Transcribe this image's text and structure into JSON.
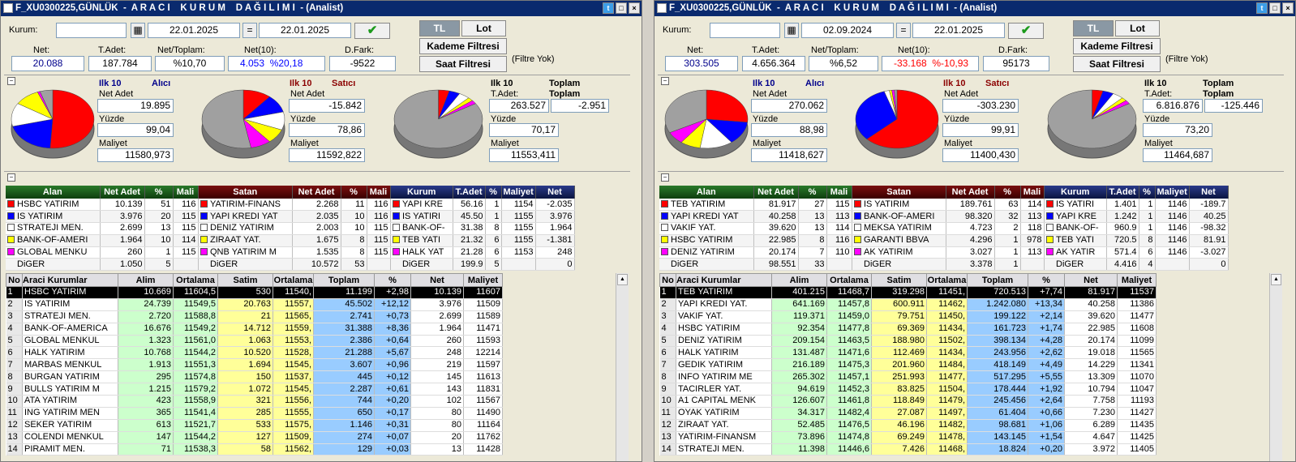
{
  "left": {
    "title": "F_XU0300225,GÜNLÜK  -  A R A C I    K U R U M    D A Ğ I L I M I  - (Analist)",
    "kurum_label": "Kurum:",
    "kurum_value": "",
    "date_from": "22.01.2025",
    "eq": "=",
    "date_to": "22.01.2025",
    "tl": "TL",
    "lot": "Lot",
    "kademe": "Kademe Filtresi",
    "saat": "Saat Filtresi",
    "filtre_yok": "(Filtre Yok)",
    "stats": {
      "net_l": "Net:",
      "net": "20.088",
      "tadet_l": "T.Adet:",
      "tadet": "187.784",
      "nettop_l": "Net/Toplam:",
      "nettop": "%10,70",
      "net10_l": "Net(10):",
      "net10a": "4.053",
      "net10b": "%20,18",
      "dfark_l": "D.Fark:",
      "dfark": "-9522"
    },
    "alici": {
      "ilk": "Ilk 10",
      "t": "Alıcı",
      "netadet_l": "Net Adet",
      "netadet": "19.895",
      "yuzde_l": "Yüzde",
      "yuzde": "99,04",
      "maliyet_l": "Maliyet",
      "maliyet": "11580,973"
    },
    "satici": {
      "ilk": "Ilk 10",
      "t": "Satıcı",
      "netadet_l": "Net Adet",
      "netadet": "-15.842",
      "yuzde_l": "Yüzde",
      "yuzde": "78,86",
      "maliyet_l": "Maliyet",
      "maliyet": "11592,822"
    },
    "toplam": {
      "ilk": "Ilk 10",
      "t": "Toplam",
      "t2": "Toplam",
      "tadet_l": "T.Adet:",
      "tadet": "263.527",
      "top": "-2.951",
      "yuzde_l": "Yüzde",
      "yuzde": "70,17",
      "maliyet_l": "Maliyet",
      "maliyet": "11553,411"
    },
    "alan_h": [
      "Alan",
      "Net Adet",
      "%",
      "Mali"
    ],
    "alan": [
      [
        "HSBC YATIRIM",
        "10.139",
        "51",
        "116",
        "#ff0000"
      ],
      [
        "IS YATIRIM",
        "3.976",
        "20",
        "115",
        "#0000ff"
      ],
      [
        "STRATEJI MEN.",
        "2.699",
        "13",
        "115",
        "#ffffff"
      ],
      [
        "BANK-OF-AMERI",
        "1.964",
        "10",
        "114",
        "#ffff00"
      ],
      [
        "GLOBAL MENKU",
        "260",
        "1",
        "115",
        "#ff00ff"
      ],
      [
        "DiGER",
        "1.050",
        "5",
        "",
        ""
      ]
    ],
    "satan_h": [
      "Satan",
      "Net Adet",
      "%",
      "Mali"
    ],
    "satan": [
      [
        "YATIRIM-FINANS",
        "2.268",
        "11",
        "116",
        "#ff0000"
      ],
      [
        "YAPI KREDI YAT",
        "2.035",
        "10",
        "116",
        "#0000ff"
      ],
      [
        "DENIZ YATIRIM",
        "2.003",
        "10",
        "115",
        "#ffffff"
      ],
      [
        "ZIRAAT YAT.",
        "1.675",
        "8",
        "115",
        "#ffff00"
      ],
      [
        "QNB YATIRIM M",
        "1.535",
        "8",
        "115",
        "#ff00ff"
      ],
      [
        "DiGER",
        "10.572",
        "53",
        "",
        ""
      ]
    ],
    "kurum_h": [
      "Kurum",
      "T.Adet",
      "%",
      "Maliyet",
      "Net"
    ],
    "kurum": [
      [
        "YAPI KRE",
        "56.16",
        "1",
        "1154",
        "-2.035",
        "#ff0000"
      ],
      [
        "IS YATIRI",
        "45.50",
        "1",
        "1155",
        "3.976",
        "#0000ff"
      ],
      [
        "BANK-OF-",
        "31.38",
        "8",
        "1155",
        "1.964",
        "#ffffff"
      ],
      [
        "TEB YATI",
        "21.32",
        "6",
        "1155",
        "-1.381",
        "#ffff00"
      ],
      [
        "HALK YAT",
        "21.28",
        "6",
        "1153",
        "248",
        "#ff00ff"
      ],
      [
        "DiGER",
        "199.9",
        "5",
        "",
        "0",
        ""
      ]
    ],
    "big_h": [
      "No",
      "Araci Kurumlar",
      "Alim",
      "Ortalama",
      "Satim",
      "Ortalama",
      "Toplam",
      "%",
      "Net",
      "Maliyet"
    ],
    "big": [
      [
        "1",
        "HSBC YATIRIM",
        "10.669",
        "11604,5",
        "530",
        "11540,",
        "11.199",
        "+2,98",
        "10.139",
        "11607"
      ],
      [
        "2",
        "IS YATIRIM",
        "24.739",
        "11549,5",
        "20.763",
        "11557,",
        "45.502",
        "+12,12",
        "3.976",
        "11509"
      ],
      [
        "3",
        "STRATEJI MEN.",
        "2.720",
        "11588,8",
        "21",
        "11565,",
        "2.741",
        "+0,73",
        "2.699",
        "11589"
      ],
      [
        "4",
        "BANK-OF-AMERICA",
        "16.676",
        "11549,2",
        "14.712",
        "11559,",
        "31.388",
        "+8,36",
        "1.964",
        "11471"
      ],
      [
        "5",
        "GLOBAL MENKUL",
        "1.323",
        "11561,0",
        "1.063",
        "11553,",
        "2.386",
        "+0,64",
        "260",
        "11593"
      ],
      [
        "6",
        "HALK YATIRIM",
        "10.768",
        "11544,2",
        "10.520",
        "11528,",
        "21.288",
        "+5,67",
        "248",
        "12214"
      ],
      [
        "7",
        "MARBAS MENKUL",
        "1.913",
        "11551,3",
        "1.694",
        "11545,",
        "3.607",
        "+0,96",
        "219",
        "11597"
      ],
      [
        "8",
        "BURGAN YATIRIM",
        "295",
        "11574,8",
        "150",
        "11537,",
        "445",
        "+0,12",
        "145",
        "11613"
      ],
      [
        "9",
        "BULLS YATIRIM M",
        "1.215",
        "11579,2",
        "1.072",
        "11545,",
        "2.287",
        "+0,61",
        "143",
        "11831"
      ],
      [
        "10",
        "ATA YATIRIM",
        "423",
        "11558,9",
        "321",
        "11556,",
        "744",
        "+0,20",
        "102",
        "11567"
      ],
      [
        "11",
        "ING YATIRIM MEN",
        "365",
        "11541,4",
        "285",
        "11555,",
        "650",
        "+0,17",
        "80",
        "11490"
      ],
      [
        "12",
        "SEKER YATIRIM",
        "613",
        "11521,7",
        "533",
        "11575,",
        "1.146",
        "+0,31",
        "80",
        "11164"
      ],
      [
        "13",
        "COLENDI MENKUL",
        "147",
        "11544,2",
        "127",
        "11509,",
        "274",
        "+0,07",
        "20",
        "11762"
      ],
      [
        "14",
        "PIRAMIT MEN.",
        "71",
        "11538,3",
        "58",
        "11562,",
        "129",
        "+0,03",
        "13",
        "11428"
      ]
    ]
  },
  "right": {
    "title": "F_XU0300225,GÜNLÜK  -  A R A C I    K U R U M    D A Ğ I L I M I  - (Analist)",
    "kurum_label": "Kurum:",
    "kurum_value": "",
    "date_from": "02.09.2024",
    "eq": "=",
    "date_to": "22.01.2025",
    "tl": "TL",
    "lot": "Lot",
    "kademe": "Kademe Filtresi",
    "saat": "Saat Filtresi",
    "filtre_yok": "(Filtre Yok)",
    "stats": {
      "net_l": "Net:",
      "net": "303.505",
      "tadet_l": "T.Adet:",
      "tadet": "4.656.364",
      "nettop_l": "Net/Toplam:",
      "nettop": "%6,52",
      "net10_l": "Net(10):",
      "net10a": "-33.168",
      "net10b": "%-10,93",
      "dfark_l": "D.Fark:",
      "dfark": "95173"
    },
    "alici": {
      "ilk": "Ilk 10",
      "t": "Alıcı",
      "netadet_l": "Net Adet",
      "netadet": "270.062",
      "yuzde_l": "Yüzde",
      "yuzde": "88,98",
      "maliyet_l": "Maliyet",
      "maliyet": "11418,627"
    },
    "satici": {
      "ilk": "Ilk 10",
      "t": "Satıcı",
      "netadet_l": "Net Adet",
      "netadet": "-303.230",
      "yuzde_l": "Yüzde",
      "yuzde": "99,91",
      "maliyet_l": "Maliyet",
      "maliyet": "11400,430"
    },
    "toplam": {
      "ilk": "Ilk 10",
      "t": "Toplam",
      "t2": "Toplam",
      "tadet_l": "T.Adet:",
      "tadet": "6.816.876",
      "top": "-125.446",
      "yuzde_l": "Yüzde",
      "yuzde": "73,20",
      "maliyet_l": "Maliyet",
      "maliyet": "11464,687"
    },
    "alan_h": [
      "Alan",
      "Net Adet",
      "%",
      "Mali"
    ],
    "alan": [
      [
        "TEB YATIRIM",
        "81.917",
        "27",
        "115",
        "#ff0000"
      ],
      [
        "YAPI KREDI YAT",
        "40.258",
        "13",
        "113",
        "#0000ff"
      ],
      [
        "VAKIF YAT.",
        "39.620",
        "13",
        "114",
        "#ffffff"
      ],
      [
        "HSBC YATIRIM",
        "22.985",
        "8",
        "116",
        "#ffff00"
      ],
      [
        "DENIZ YATIRIM",
        "20.174",
        "7",
        "110",
        "#ff00ff"
      ],
      [
        "DiGER",
        "98.551",
        "33",
        "",
        ""
      ]
    ],
    "satan_h": [
      "Satan",
      "Net Adet",
      "%",
      "Mali"
    ],
    "satan": [
      [
        "IS YATIRIM",
        "189.761",
        "63",
        "114",
        "#ff0000"
      ],
      [
        "BANK-OF-AMERI",
        "98.320",
        "32",
        "113",
        "#0000ff"
      ],
      [
        "MEKSA YATIRIM",
        "4.723",
        "2",
        "118",
        "#ffffff"
      ],
      [
        "GARANTI BBVA",
        "4.296",
        "1",
        "978",
        "#ffff00"
      ],
      [
        "AK YATIRIM",
        "3.027",
        "1",
        "113",
        "#ff00ff"
      ],
      [
        "DiGER",
        "3.378",
        "1",
        "",
        ""
      ]
    ],
    "kurum_h": [
      "Kurum",
      "T.Adet",
      "%",
      "Maliyet",
      "Net"
    ],
    "kurum": [
      [
        "IS YATIRI",
        "1.401",
        "1",
        "1146",
        "-189.7",
        "#ff0000"
      ],
      [
        "YAPI KRE",
        "1.242",
        "1",
        "1146",
        "40.25",
        "#0000ff"
      ],
      [
        "BANK-OF-",
        "960.9",
        "1",
        "1146",
        "-98.32",
        "#ffffff"
      ],
      [
        "TEB YATI",
        "720.5",
        "8",
        "1146",
        "81.91",
        "#ffff00"
      ],
      [
        "AK YATIR",
        "571.4",
        "6",
        "1146",
        "-3.027",
        "#ff00ff"
      ],
      [
        "DiGER",
        "4.416",
        "4",
        "",
        "0",
        ""
      ]
    ],
    "big_h": [
      "No",
      "Araci Kurumlar",
      "Alim",
      "Ortalama",
      "Satim",
      "Ortalama",
      "Toplam",
      "%",
      "Net",
      "Maliyet"
    ],
    "big": [
      [
        "1",
        "TEB YATIRIM",
        "401.215",
        "11468,7",
        "319.298",
        "11451,",
        "720.513",
        "+7,74",
        "81.917",
        "11537"
      ],
      [
        "2",
        "YAPI KREDI YAT.",
        "641.169",
        "11457,8",
        "600.911",
        "11462,",
        "1.242.080",
        "+13,34",
        "40.258",
        "11386"
      ],
      [
        "3",
        "VAKIF YAT.",
        "119.371",
        "11459,0",
        "79.751",
        "11450,",
        "199.122",
        "+2,14",
        "39.620",
        "11477"
      ],
      [
        "4",
        "HSBC YATIRIM",
        "92.354",
        "11477,8",
        "69.369",
        "11434,",
        "161.723",
        "+1,74",
        "22.985",
        "11608"
      ],
      [
        "5",
        "DENIZ YATIRIM",
        "209.154",
        "11463,5",
        "188.980",
        "11502,",
        "398.134",
        "+4,28",
        "20.174",
        "11099"
      ],
      [
        "6",
        "HALK YATIRIM",
        "131.487",
        "11471,6",
        "112.469",
        "11434,",
        "243.956",
        "+2,62",
        "19.018",
        "11565"
      ],
      [
        "7",
        "GEDIK YATIRIM",
        "216.189",
        "11475,3",
        "201.960",
        "11484,",
        "418.149",
        "+4,49",
        "14.229",
        "11341"
      ],
      [
        "8",
        "INFO YATIRIM ME",
        "265.302",
        "11457,1",
        "251.993",
        "11477,",
        "517.295",
        "+5,55",
        "13.309",
        "11070"
      ],
      [
        "9",
        "TACIRLER YAT.",
        "94.619",
        "11452,3",
        "83.825",
        "11504,",
        "178.444",
        "+1,92",
        "10.794",
        "11047"
      ],
      [
        "10",
        "A1 CAPITAL MENK",
        "126.607",
        "11461,8",
        "118.849",
        "11479,",
        "245.456",
        "+2,64",
        "7.758",
        "11193"
      ],
      [
        "11",
        "OYAK YATIRIM",
        "34.317",
        "11482,4",
        "27.087",
        "11497,",
        "61.404",
        "+0,66",
        "7.230",
        "11427"
      ],
      [
        "12",
        "ZIRAAT YAT.",
        "52.485",
        "11476,5",
        "46.196",
        "11482,",
        "98.681",
        "+1,06",
        "6.289",
        "11435"
      ],
      [
        "13",
        "YATIRIM-FINANSM",
        "73.896",
        "11474,8",
        "69.249",
        "11478,",
        "143.145",
        "+1,54",
        "4.647",
        "11425"
      ],
      [
        "14",
        "STRATEJI MEN.",
        "11.398",
        "11446,6",
        "7.426",
        "11468,",
        "18.824",
        "+0,20",
        "3.972",
        "11405"
      ]
    ]
  },
  "colors": {
    "red": "#ff0000",
    "blue": "#0000ff",
    "green_hdr": "#1e6b1e",
    "maroon_hdr": "#6b0000",
    "blue_hdr": "#0a2a6e",
    "alim_bg": "#ccffcc",
    "satim_bg": "#ffff99",
    "toplam_bg": "#99ccff"
  },
  "pies": {
    "left": {
      "alici": [
        51,
        20,
        13,
        10,
        1,
        5
      ],
      "satici": [
        11,
        10,
        10,
        8,
        8,
        53
      ],
      "toplam": [
        4,
        4,
        4,
        2,
        2,
        84
      ]
    },
    "right": {
      "alici": [
        27,
        13,
        13,
        8,
        7,
        33
      ],
      "satici": [
        63,
        32,
        2,
        1,
        1,
        1
      ],
      "toplam": [
        4,
        4,
        4,
        2,
        2,
        84
      ]
    }
  }
}
